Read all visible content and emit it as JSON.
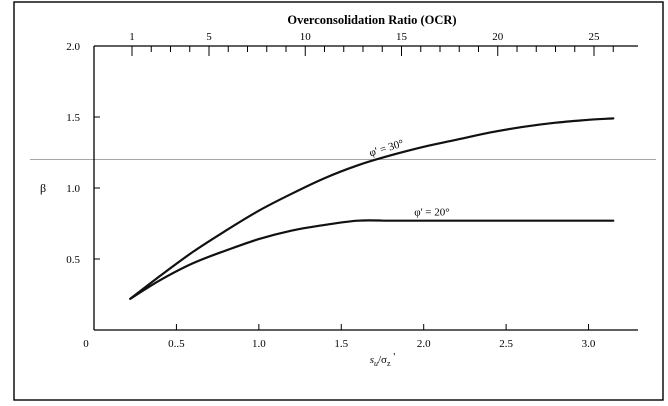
{
  "chart_data": {
    "type": "line",
    "top_axis_title": "Overconsolidation Ratio (OCR)",
    "top_ticks_major": [
      1,
      5,
      10,
      15,
      20,
      25
    ],
    "top_ticks_minor": [
      2,
      3,
      4,
      6,
      7,
      8,
      9,
      11,
      12,
      13,
      14,
      16,
      17,
      18,
      19,
      21,
      22,
      23,
      24,
      26
    ],
    "xlabel": "su/σz'",
    "xlabel_parts": {
      "s": "s",
      "sub_u": "u",
      "slash": "/σ",
      "sub_z": "z",
      "prime": " '"
    },
    "ylabel": "β",
    "x_ticks": [
      "0",
      "0..5",
      "1.0",
      "1.5",
      "2.0",
      "2.5",
      "3.0"
    ],
    "x_tick_values": [
      0,
      0.5,
      1.0,
      1.5,
      2.0,
      2.5,
      3.0
    ],
    "y_ticks": [
      "0.5",
      "1.0",
      "1.5",
      "2.0"
    ],
    "y_tick_values": [
      0.5,
      1.0,
      1.5,
      2.0
    ],
    "xlim": [
      0,
      3.3
    ],
    "ylim": [
      0,
      2.0
    ],
    "series": [
      {
        "name": "φ' = 30°",
        "x": [
          0.22,
          0.4,
          0.6,
          0.8,
          1.0,
          1.2,
          1.4,
          1.6,
          1.8,
          2.0,
          2.2,
          2.4,
          2.6,
          2.8,
          3.0,
          3.15
        ],
        "y": [
          0.22,
          0.38,
          0.55,
          0.7,
          0.84,
          0.96,
          1.07,
          1.16,
          1.23,
          1.29,
          1.34,
          1.39,
          1.43,
          1.46,
          1.48,
          1.49
        ]
      },
      {
        "name": "φ' = 20°",
        "x": [
          0.22,
          0.4,
          0.6,
          0.8,
          1.0,
          1.2,
          1.4,
          1.6,
          1.8,
          2.0,
          2.4,
          2.8,
          3.15
        ],
        "y": [
          0.22,
          0.35,
          0.47,
          0.56,
          0.64,
          0.7,
          0.74,
          0.77,
          0.77,
          0.77,
          0.77,
          0.77,
          0.77
        ]
      }
    ],
    "annotations": [
      "φ' = 30°",
      "φ' = 20°"
    ],
    "reference_line_y": 1.2,
    "grid": false,
    "legend": "none"
  }
}
